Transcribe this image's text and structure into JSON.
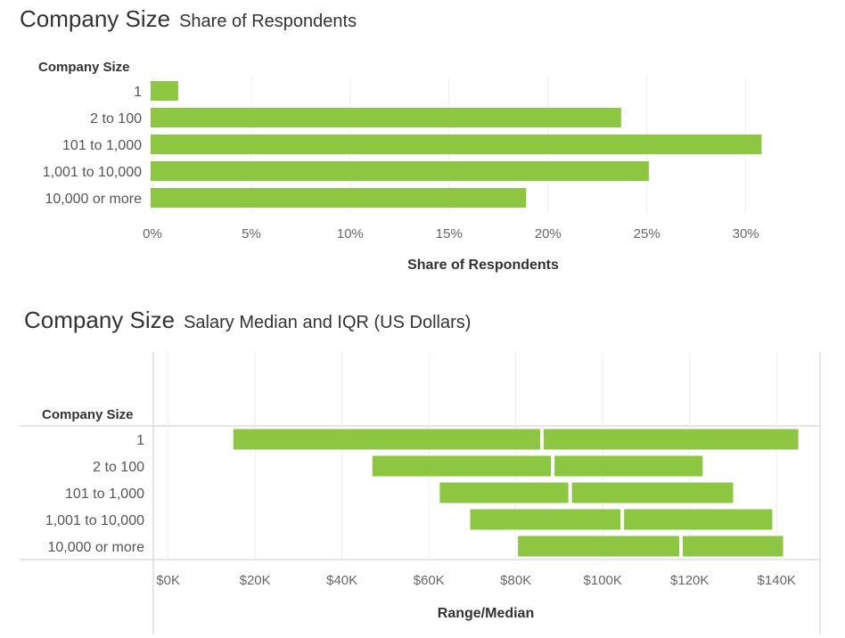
{
  "chart_data": [
    {
      "type": "bar",
      "orientation": "horizontal",
      "title": "Company Size",
      "subtitle": "Share of Respondents",
      "row_header": "Company Size",
      "categories": [
        "1",
        "2 to 100",
        "101 to 1,000",
        "1,001 to 10,000",
        "10,000 or more"
      ],
      "values": [
        1.3,
        23.7,
        30.8,
        25.1,
        18.9
      ],
      "xlabel": "Share of Respondents",
      "xlim": [
        0,
        32
      ],
      "ticks": [
        0,
        5,
        10,
        15,
        20,
        25,
        30
      ],
      "tick_labels": [
        "0%",
        "5%",
        "10%",
        "15%",
        "20%",
        "25%",
        "30%"
      ],
      "bar_color": "#8dc641",
      "grid": true
    },
    {
      "type": "range_bar",
      "orientation": "horizontal",
      "title": "Company Size",
      "subtitle": "Salary Median and IQR (US Dollars)",
      "row_header": "Company Size",
      "categories": [
        "1",
        "2 to 100",
        "101 to 1,000",
        "1,001 to 10,000",
        "10,000 or more"
      ],
      "q1": [
        15000,
        47000,
        62500,
        69500,
        80500
      ],
      "median": [
        86000,
        88500,
        92500,
        104500,
        118000
      ],
      "q3": [
        145000,
        123000,
        130000,
        139000,
        141500
      ],
      "xlabel": "Range/Median",
      "xlim": [
        -3000,
        150000
      ],
      "ticks": [
        0,
        20000,
        40000,
        60000,
        80000,
        100000,
        120000,
        140000
      ],
      "tick_labels": [
        "$0K",
        "$20K",
        "$40K",
        "$60K",
        "$80K",
        "$100K",
        "$120K",
        "$140K"
      ],
      "bar_color": "#8dc641",
      "grid": true
    }
  ]
}
